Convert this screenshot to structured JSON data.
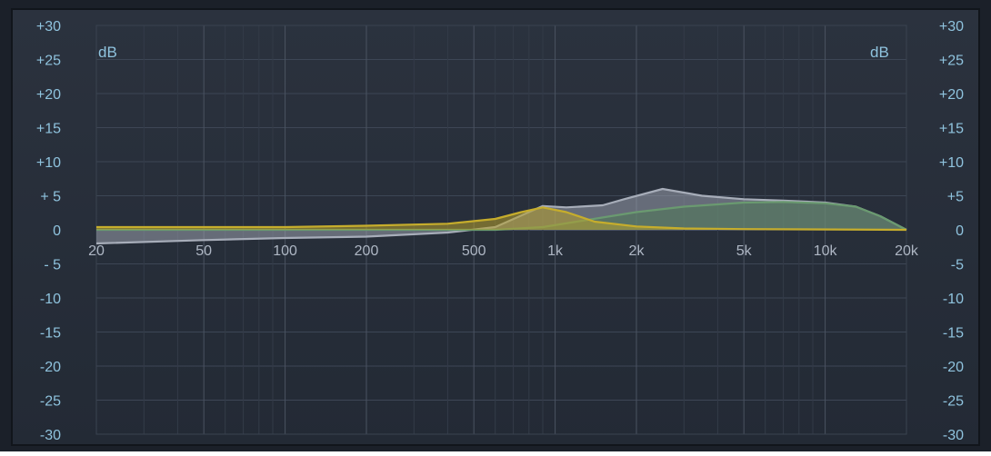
{
  "panel": {
    "left_unit": "dB",
    "right_unit": "dB",
    "left_db_ticks": [
      "+30",
      "+25",
      "+20",
      "+15",
      "+10",
      "+ 5",
      "0",
      "- 5",
      "-10",
      "-15",
      "-20",
      "-25",
      "-30"
    ],
    "right_db_ticks": [
      "+30",
      "+25",
      "+20",
      "+15",
      "+10",
      "+5",
      "0",
      "-5",
      "-10",
      "-15",
      "-20",
      "-25",
      "-30"
    ]
  },
  "chart_data": {
    "type": "area",
    "x_scale": "log",
    "xlim": [
      20,
      20000
    ],
    "ylim": [
      -30,
      30
    ],
    "grid": true,
    "x_ticks": [
      {
        "value": 20,
        "label": "20"
      },
      {
        "value": 50,
        "label": "50"
      },
      {
        "value": 100,
        "label": "100"
      },
      {
        "value": 200,
        "label": "200"
      },
      {
        "value": 500,
        "label": "500"
      },
      {
        "value": 1000,
        "label": "1k"
      },
      {
        "value": 2000,
        "label": "2k"
      },
      {
        "value": 5000,
        "label": "5k"
      },
      {
        "value": 10000,
        "label": "10k"
      },
      {
        "value": 20000,
        "label": "20k"
      }
    ],
    "y_ticks": [
      30,
      25,
      20,
      15,
      10,
      5,
      0,
      -5,
      -10,
      -15,
      -20,
      -25,
      -30
    ],
    "series": [
      {
        "color": "#9aa0ad",
        "points": [
          [
            20,
            -2
          ],
          [
            50,
            -1.5
          ],
          [
            100,
            -1.2
          ],
          [
            200,
            -1
          ],
          [
            400,
            -0.4
          ],
          [
            600,
            0.4
          ],
          [
            900,
            3.5
          ],
          [
            1100,
            3.3
          ],
          [
            1500,
            3.6
          ],
          [
            1800,
            4.5
          ],
          [
            2500,
            6
          ],
          [
            3500,
            5
          ],
          [
            5000,
            4.5
          ],
          [
            7000,
            4.3
          ],
          [
            10000,
            4
          ],
          [
            13000,
            3.4
          ],
          [
            16000,
            2
          ],
          [
            20000,
            0
          ]
        ]
      },
      {
        "color": "#4f7a58",
        "points": [
          [
            20,
            0
          ],
          [
            600,
            0
          ],
          [
            900,
            0.4
          ],
          [
            1200,
            1.2
          ],
          [
            2000,
            2.6
          ],
          [
            3000,
            3.4
          ],
          [
            5000,
            4
          ],
          [
            7000,
            4.1
          ],
          [
            10000,
            3.9
          ],
          [
            13000,
            3.4
          ],
          [
            16000,
            2
          ],
          [
            20000,
            0
          ]
        ]
      },
      {
        "color": "#b6a02c",
        "points": [
          [
            20,
            0.4
          ],
          [
            100,
            0.4
          ],
          [
            200,
            0.6
          ],
          [
            400,
            0.9
          ],
          [
            600,
            1.6
          ],
          [
            750,
            2.6
          ],
          [
            900,
            3.3
          ],
          [
            1100,
            2.6
          ],
          [
            1400,
            1.2
          ],
          [
            2000,
            0.5
          ],
          [
            3000,
            0.2
          ],
          [
            5000,
            0.1
          ],
          [
            20000,
            0
          ]
        ]
      }
    ]
  }
}
